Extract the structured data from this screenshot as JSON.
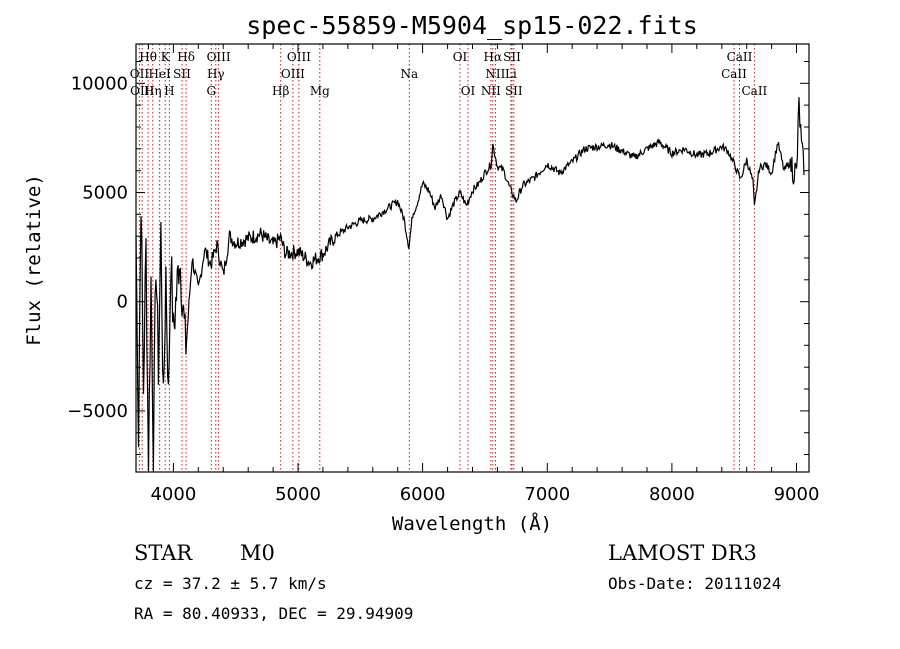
{
  "chart_data": {
    "type": "line",
    "title": "spec-55859-M5904_sp15-022.fits",
    "xlabel": "Wavelength (Å)",
    "ylabel": "Flux (relative)",
    "xlim": [
      3700,
      9100
    ],
    "ylim": [
      -7800,
      11800
    ],
    "x_ticks": [
      4000,
      5000,
      6000,
      7000,
      8000,
      9000
    ],
    "y_ticks": [
      -5000,
      0,
      5000,
      10000
    ],
    "x_tick_labels": [
      "4000",
      "5000",
      "6000",
      "7000",
      "8000",
      "9000"
    ],
    "y_tick_labels": [
      "−5000",
      "0",
      "5000",
      "10000"
    ],
    "series": [
      {
        "name": "flux",
        "x": [
          3700,
          3720,
          3740,
          3760,
          3780,
          3800,
          3820,
          3840,
          3860,
          3880,
          3900,
          3920,
          3940,
          3960,
          3980,
          4000,
          4050,
          4100,
          4150,
          4200,
          4250,
          4300,
          4350,
          4400,
          4450,
          4500,
          4600,
          4700,
          4800,
          4860,
          4900,
          5000,
          5100,
          5200,
          5300,
          5400,
          5500,
          5600,
          5700,
          5800,
          5850,
          5890,
          5920,
          5950,
          6000,
          6050,
          6100,
          6150,
          6200,
          6250,
          6300,
          6350,
          6400,
          6450,
          6500,
          6550,
          6563,
          6600,
          6650,
          6700,
          6750,
          6800,
          6900,
          7000,
          7100,
          7200,
          7300,
          7400,
          7500,
          7600,
          7700,
          7800,
          7900,
          8000,
          8100,
          8200,
          8300,
          8400,
          8450,
          8500,
          8550,
          8600,
          8650,
          8662,
          8700,
          8750,
          8800,
          8850,
          8900,
          8950,
          9000,
          9020,
          9040,
          9060
        ],
        "y": [
          3000,
          -6000,
          5000,
          -4000,
          2500,
          -7500,
          1000,
          -6800,
          2000,
          -3000,
          3200,
          -5000,
          1500,
          -4500,
          2200,
          -1500,
          2200,
          -2300,
          2000,
          500,
          2400,
          1700,
          2600,
          1200,
          3000,
          2700,
          2900,
          3100,
          2600,
          2900,
          2200,
          2300,
          1800,
          2200,
          3000,
          3400,
          3700,
          3800,
          4200,
          4600,
          3800,
          2500,
          4000,
          4400,
          5400,
          5100,
          4300,
          4900,
          3800,
          4500,
          5000,
          4400,
          5100,
          5400,
          5900,
          6300,
          7200,
          6200,
          6000,
          5200,
          4600,
          5300,
          5700,
          6300,
          5900,
          6400,
          7000,
          7100,
          7200,
          6900,
          6600,
          7000,
          7300,
          6800,
          7000,
          6700,
          6800,
          7100,
          6900,
          6300,
          5600,
          6500,
          5500,
          4300,
          6100,
          6300,
          5900,
          7300,
          6000,
          6400,
          5800,
          9000,
          7000,
          5800
        ]
      }
    ],
    "lines_top": [
      {
        "label": "Hθ",
        "x": 3797
      },
      {
        "label": "K",
        "x": 3934
      },
      {
        "label": "Hδ",
        "x": 4102
      },
      {
        "label": "OIII",
        "x": 4363
      },
      {
        "label": "OIII",
        "x": 5007
      },
      {
        "label": "OI",
        "x": 6300
      },
      {
        "label": "Hα",
        "x": 6563
      },
      {
        "label": "SII",
        "x": 6717
      },
      {
        "label": "CaII",
        "x": 8542
      }
    ],
    "lines_mid": [
      {
        "label": "OII",
        "x": 3727
      },
      {
        "label": "HeI",
        "x": 3889
      },
      {
        "label": "SII",
        "x": 4069
      },
      {
        "label": "Hγ",
        "x": 4340
      },
      {
        "label": "OIII",
        "x": 4959
      },
      {
        "label": "Na",
        "x": 5893
      },
      {
        "label": "NII",
        "x": 6584
      },
      {
        "label": "Li",
        "x": 6708
      },
      {
        "label": "CaII",
        "x": 8498
      }
    ],
    "lines_low": [
      {
        "label": "OIII",
        "x": 3750
      },
      {
        "label": "Hη",
        "x": 3835
      },
      {
        "label": "H",
        "x": 3968
      },
      {
        "label": "G",
        "x": 4304
      },
      {
        "label": "Hβ",
        "x": 4861
      },
      {
        "label": "Mg",
        "x": 5175
      },
      {
        "label": "OI",
        "x": 6364
      },
      {
        "label": "NII",
        "x": 6548
      },
      {
        "label": "SII",
        "x": 6731
      },
      {
        "label": "CaII",
        "x": 8662
      }
    ],
    "dotted_line_positions": [
      3727,
      3750,
      3797,
      3835,
      3889,
      3934,
      3968,
      4069,
      4102,
      4304,
      4340,
      4363,
      4861,
      4959,
      5007,
      5175,
      5893,
      6300,
      6364,
      6548,
      6563,
      6584,
      6708,
      6717,
      6731,
      8498,
      8542,
      8662
    ]
  },
  "info": {
    "object_class": "STAR",
    "subclass": "M0",
    "survey": "LAMOST DR3",
    "redshift": "cz = 37.2 ± 5.7 km/s",
    "obs_date": "Obs-Date: 20111024",
    "coords": "RA =  80.40933, DEC =  29.94909"
  }
}
